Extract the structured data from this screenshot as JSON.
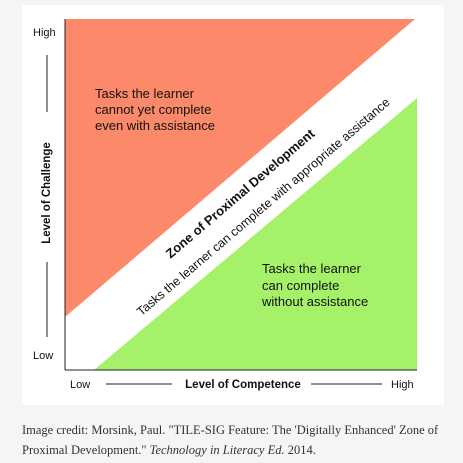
{
  "diagram": {
    "y_axis": {
      "label": "Level of Challenge",
      "high": "High",
      "low": "Low"
    },
    "x_axis": {
      "label": "Level of Competence",
      "low": "Low",
      "high": "High"
    },
    "upper_region": {
      "lines": [
        "Tasks the learner",
        "cannot yet complete",
        "even with assistance"
      ],
      "color": "#fc8a6a"
    },
    "zone": {
      "title": "Zone of Proximal Development",
      "subtitle": "Tasks the learner can complete with appropriate assistance",
      "color": "#ffffff"
    },
    "lower_region": {
      "lines": [
        "Tasks the learner",
        "can complete",
        "without assistance"
      ],
      "color": "#a5f26a"
    }
  },
  "caption": {
    "prefix": "Image credit: Morsink, Paul. \"TILE-SIG Feature: The 'Digitally Enhanced' Zone of Proximal Development.\" ",
    "journal": "Technology in Literacy Ed.",
    "suffix": " 2014."
  }
}
